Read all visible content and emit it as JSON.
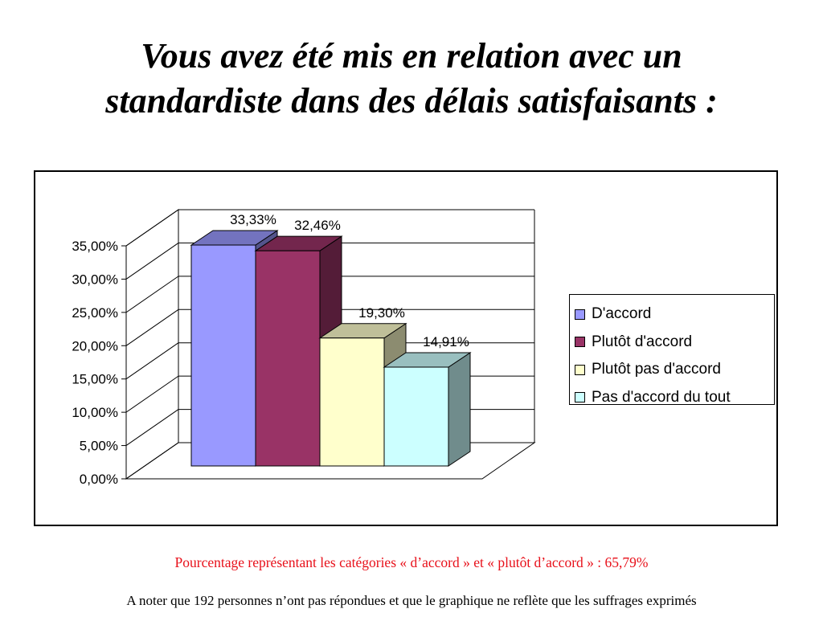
{
  "title": {
    "line1": "Vous avez été mis en relation avec un",
    "line2": "standardiste dans des délais satisfaisants :"
  },
  "chart_data": {
    "type": "bar",
    "style": "3d-clustered-column",
    "categories": [
      "D'accord",
      "Plutôt d'accord",
      "Plutôt pas d'accord",
      "Pas d'accord du tout"
    ],
    "values": [
      33.33,
      32.46,
      19.3,
      14.91
    ],
    "value_labels": [
      "33,33%",
      "32,46%",
      "19,30%",
      "14,91%"
    ],
    "colors": [
      "#9999ff",
      "#993366",
      "#ffffcc",
      "#ccffff"
    ],
    "ylim": [
      0,
      35
    ],
    "yticks": [
      0,
      5,
      10,
      15,
      20,
      25,
      30,
      35
    ],
    "ytick_labels": [
      "0,00%",
      "5,00%",
      "10,00%",
      "15,00%",
      "20,00%",
      "25,00%",
      "30,00%",
      "35,00%"
    ],
    "grid": true,
    "legend_position": "right"
  },
  "notes": {
    "percentage": "Pourcentage représentant les catégories « d’accord » et « plutôt d’accord » : 65,79%",
    "footnote": "A noter que 192 personnes n’ont pas répondues et que le graphique ne reflète que les suffrages exprimés"
  }
}
